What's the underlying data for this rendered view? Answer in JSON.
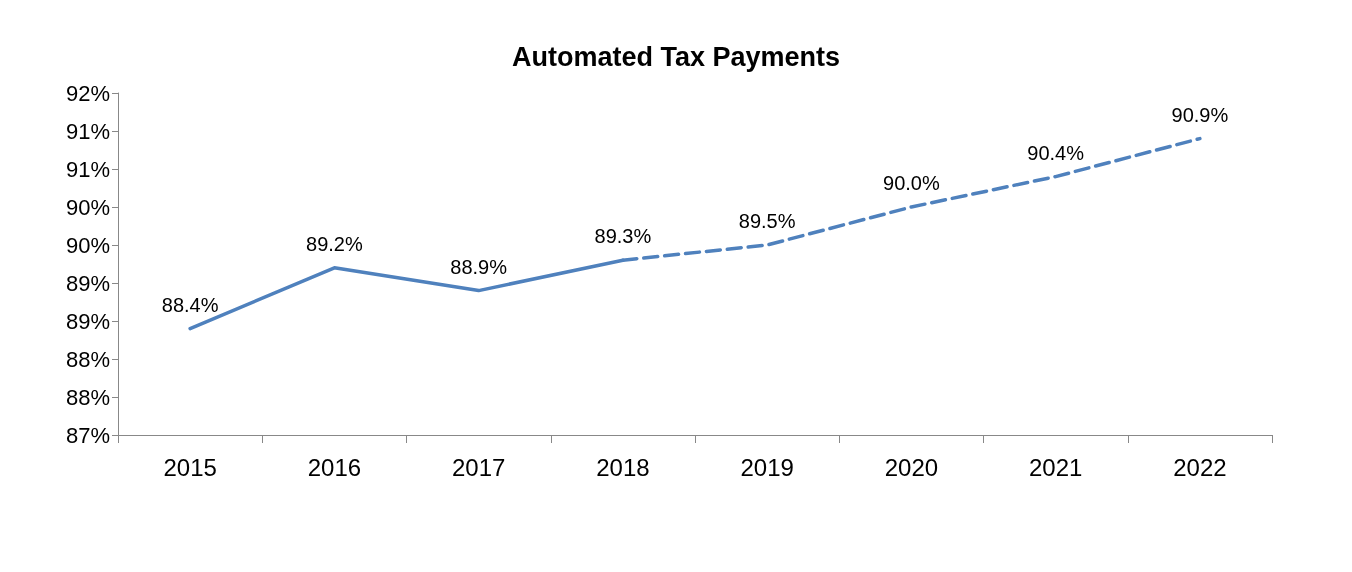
{
  "chart_data": {
    "type": "line",
    "title": "Automated Tax Payments",
    "categories": [
      "2015",
      "2016",
      "2017",
      "2018",
      "2019",
      "2020",
      "2021",
      "2022"
    ],
    "series": [
      {
        "color": "#4f81bd",
        "line_style": "solid",
        "values": [
          88.4,
          89.2,
          88.9,
          89.3,
          null,
          null,
          null,
          null
        ],
        "value_labels": [
          "88.4%",
          "89.2%",
          "88.9%",
          "89.3%",
          null,
          null,
          null,
          null
        ]
      },
      {
        "color": "#4f81bd",
        "line_style": "dashed",
        "values": [
          null,
          null,
          null,
          89.3,
          89.5,
          90.0,
          90.4,
          90.9
        ],
        "value_labels": [
          null,
          null,
          null,
          null,
          "89.5%",
          "90.0%",
          "90.4%",
          "90.9%"
        ]
      }
    ],
    "ylim": [
      87,
      91.5
    ],
    "yticks": [
      {
        "value": 87,
        "label": "87%"
      },
      {
        "value": 87.5,
        "label": "88%"
      },
      {
        "value": 88,
        "label": "88%"
      },
      {
        "value": 88.5,
        "label": "89%"
      },
      {
        "value": 89,
        "label": "89%"
      },
      {
        "value": 89.5,
        "label": "90%"
      },
      {
        "value": 90,
        "label": "90%"
      },
      {
        "value": 90.5,
        "label": "91%"
      },
      {
        "value": 91,
        "label": "91%"
      },
      {
        "value": 91.5,
        "label": "92%"
      }
    ],
    "grid": false,
    "marker": "none"
  }
}
